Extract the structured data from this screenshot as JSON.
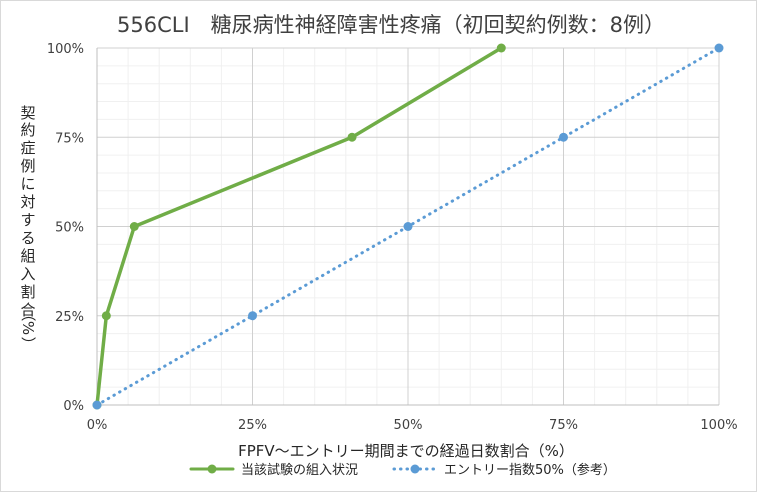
{
  "chart_data": {
    "type": "line",
    "title": "556CLI　糖尿病性神経障害性疼痛（初回契約例数：8例）",
    "xlabel": "FPFV～エントリー期間までの経過日数割合（%）",
    "ylabel_chars": [
      "契",
      "約",
      "症",
      "例",
      "に",
      "対",
      "す",
      "る",
      "組",
      "入",
      "割",
      "合",
      "（",
      "%",
      "）"
    ],
    "xlim": [
      0,
      100
    ],
    "ylim": [
      0,
      100
    ],
    "x_ticks": [
      0,
      25,
      50,
      75,
      100
    ],
    "x_tick_labels": [
      "0%",
      "25%",
      "50%",
      "75%",
      "100%"
    ],
    "y_ticks": [
      0,
      25,
      50,
      75,
      100
    ],
    "y_tick_labels": [
      "0%",
      "25%",
      "50%",
      "75%",
      "100%"
    ],
    "grid": true,
    "legend_position": "bottom",
    "series": [
      {
        "name": "当該試験の組入状況",
        "color": "#70ad47",
        "style": "solid",
        "points": [
          [
            0,
            0
          ],
          [
            1.5,
            25
          ],
          [
            6,
            50
          ],
          [
            41,
            75
          ],
          [
            65,
            100
          ]
        ]
      },
      {
        "name": "エントリー指数50%（参考）",
        "color": "#5b9bd5",
        "style": "dotted",
        "points": [
          [
            0,
            0
          ],
          [
            25,
            25
          ],
          [
            50,
            50
          ],
          [
            75,
            75
          ],
          [
            100,
            100
          ]
        ]
      }
    ]
  }
}
